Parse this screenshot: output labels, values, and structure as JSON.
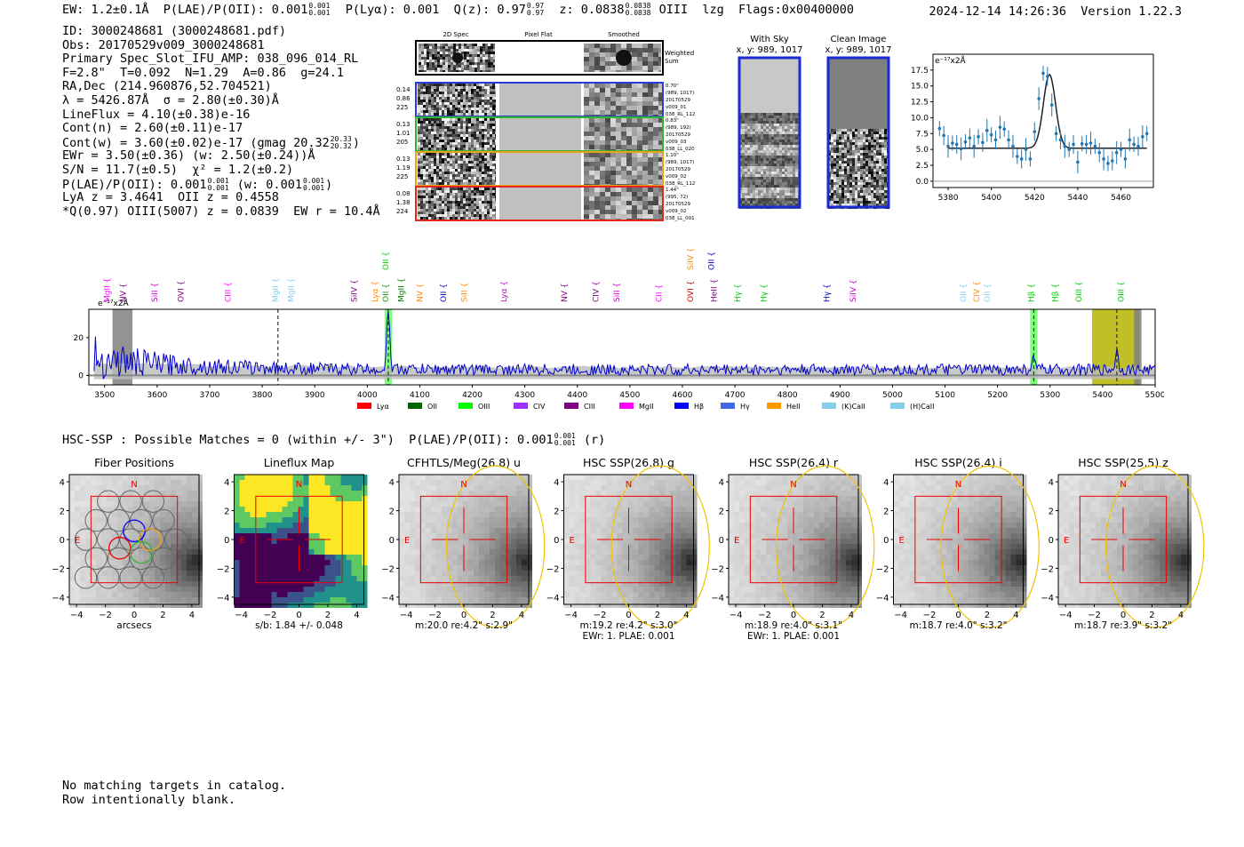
{
  "header": {
    "left_parts": [
      "EW: 1.2±0.1Å  P(LAE)/P(OII): 0.001",
      "0.001|0.001",
      "  P(Lyα): 0.001  Q(z): 0.97",
      "0.97|0.97",
      "  z: 0.0838",
      "0.0838|0.0838",
      " OIII  lzg  Flags:0x00400000"
    ],
    "right": "2024-12-14 14:26:36  Version 1.22.3"
  },
  "info": {
    "id": "ID: 3000248681 (3000248681.pdf)",
    "obs": "Obs: 20170529v009_3000248681",
    "primary": "Primary Spec_Slot_IFU_AMP: 038_096_014_RL",
    "fwhm": "F=2.8\"  T=0.092  N=1.29  A=0.86  g=24.1",
    "radec": "RA,Dec (214.960876,52.704521)",
    "lambda": "λ = 5426.87Å  σ = 2.80(±0.30)Å",
    "lineflux": "LineFlux = 4.10(±0.38)e-16",
    "cont_n": "Cont(n) = 2.60(±0.11)e-17",
    "cont_w": "Cont(w) = 3.60(±0.02)e-17 (gmag 20.32",
    "cont_w_frac": "20.33|20.32",
    "cont_w_end": ")",
    "ewr": "EWr = 3.50(±0.36) (w: 2.50(±0.24))Å",
    "sn": "S/N = 11.7(±0.5)  χ² = 1.2(±0.2)",
    "plae_a": "P(LAE)/P(OII): 0.001",
    "plae_frac1": "0.001|0.001",
    "plae_b": "(w: 0.001",
    "plae_frac2": "0.001|0.001",
    "plae_c": ")",
    "lya": "LyA z = 3.4641  OII z = 0.4558",
    "q": "*Q(0.97) OIII(5007) z = 0.0839  EW r = 10.4Å"
  },
  "cutouts_2d": {
    "col_titles": [
      "2D Spec",
      "Pixel Flat",
      "Smoothed"
    ],
    "weighted_label": "Weighted Sum",
    "rows": [
      {
        "left": [
          "0.14",
          "0.86",
          "225"
        ],
        "right": [
          "0.70\"",
          "(989, 1017)",
          "20170529",
          "v009_01",
          "038_RL_112"
        ],
        "color": "#2a3bd6"
      },
      {
        "left": [
          "0.13",
          "1.01",
          "205"
        ],
        "right": [
          "0.83\"",
          "(989, 192)",
          "20170529",
          "v009_03",
          "038_LL_020"
        ],
        "color": "#2eb82e"
      },
      {
        "left": [
          "0.13",
          "1.19",
          "225"
        ],
        "right": [
          "1.10\"",
          "(989, 1017)",
          "20170529",
          "v009_02",
          "038_RL_112"
        ],
        "color": "#e8a317"
      },
      {
        "left": [
          "0.08",
          "1.38",
          "224"
        ],
        "right": [
          "1.44\"",
          "(995, 72)",
          "20170529",
          "v009_02",
          "038_LL_001"
        ],
        "color": "#e3261e"
      }
    ]
  },
  "sky": {
    "with_sky_title": "With Sky",
    "with_sky_coords": "x, y: 989, 1017",
    "clean_title": "Clean Image",
    "clean_coords": "x, y: 989, 1017"
  },
  "zoom_chart": {
    "unit_label": "e⁻¹⁷x2Å",
    "y_ticks": [
      "17.5",
      "15.0",
      "12.5",
      "10.0",
      "7.5",
      "5.0",
      "2.5",
      "0.0"
    ],
    "x_ticks": [
      "5380",
      "5400",
      "5420",
      "5440",
      "5460"
    ]
  },
  "chart_data": [
    {
      "type": "scatter",
      "title": "",
      "xlabel": "",
      "ylabel": "e-17 x2Å",
      "xlim": [
        5373,
        5475
      ],
      "ylim": [
        -1,
        20
      ],
      "x": [
        5376,
        5378,
        5380,
        5382,
        5384,
        5386,
        5388,
        5390,
        5392,
        5394,
        5396,
        5398,
        5400,
        5402,
        5404,
        5406,
        5408,
        5410,
        5412,
        5414,
        5416,
        5418,
        5420,
        5422,
        5424,
        5426,
        5428,
        5430,
        5432,
        5434,
        5436,
        5438,
        5440,
        5442,
        5444,
        5446,
        5448,
        5450,
        5452,
        5454,
        5456,
        5458,
        5460,
        5462,
        5464,
        5466,
        5468,
        5470,
        5472
      ],
      "values": [
        8.3,
        7.2,
        5.5,
        6.0,
        5.8,
        5.1,
        6.2,
        6.8,
        5.5,
        7.0,
        6.1,
        8.0,
        7.3,
        6.5,
        8.5,
        8.2,
        6.5,
        5.5,
        3.9,
        3.5,
        5.0,
        3.5,
        7.8,
        13.0,
        17.0,
        16.5,
        12.0,
        7.5,
        6.5,
        5.5,
        5.0,
        5.8,
        3.0,
        5.9,
        5.8,
        6.0,
        5.5,
        4.5,
        3.5,
        2.8,
        3.2,
        4.5,
        5.0,
        3.5,
        6.5,
        5.8,
        5.5,
        7.0,
        7.5
      ],
      "model": {
        "continuum": 5.2,
        "peak_center": 5426.9,
        "peak_amp": 11.6,
        "sigma": 2.8
      }
    },
    {
      "type": "line",
      "title": "",
      "xlabel": "",
      "ylabel": "e-17 x2Å",
      "xlim": [
        3470,
        5500
      ],
      "ylim": [
        -5,
        35
      ],
      "y_ticks": [
        0,
        20
      ],
      "x_ticks": [
        3500,
        3600,
        3700,
        3800,
        3900,
        4000,
        4100,
        4200,
        4300,
        4400,
        4500,
        4600,
        4700,
        4800,
        4900,
        5000,
        5100,
        5200,
        5300,
        5400,
        5500
      ],
      "highlights": [
        {
          "x0": 3515,
          "x1": 3553,
          "color": "#808080"
        },
        {
          "x0": 4033,
          "x1": 4047,
          "color": "#66ff66"
        },
        {
          "x0": 5262,
          "x1": 5276,
          "color": "#66ff66"
        },
        {
          "x0": 5380,
          "x1": 5470,
          "color": "#b5b500"
        },
        {
          "x0": 5460,
          "x1": 5474,
          "color": "#808080"
        }
      ],
      "dashed_lines": [
        3830,
        4040,
        5269,
        5427
      ],
      "peaks": [
        {
          "x": 4040,
          "amp": 30
        },
        {
          "x": 5269,
          "amp": 6
        },
        {
          "x": 5427,
          "amp": 10
        }
      ],
      "line_labels": [
        {
          "x": 3510,
          "text": "MgII",
          "color": "#ff00ff",
          "row": 0
        },
        {
          "x": 3540,
          "text": "NV",
          "color": "#800080",
          "row": 0
        },
        {
          "x": 3600,
          "text": "SiII",
          "color": "#cc00cc",
          "row": 0
        },
        {
          "x": 3650,
          "text": "OVI",
          "color": "#800080",
          "row": 0
        },
        {
          "x": 3740,
          "text": "CIII",
          "color": "#ff00ff",
          "row": 0
        },
        {
          "x": 3830,
          "text": "MgII",
          "color": "#87ceeb",
          "row": 0
        },
        {
          "x": 3860,
          "text": "MgII",
          "color": "#87ceeb",
          "row": 0
        },
        {
          "x": 3980,
          "text": "SiIV",
          "color": "#800080",
          "row": 0
        },
        {
          "x": 4020,
          "text": "Lyα",
          "color": "#ff8c00",
          "row": 0
        },
        {
          "x": 4040,
          "text": "OII",
          "color": "#228b22",
          "row": 0
        },
        {
          "x": 4070,
          "text": "MgII",
          "color": "#008000",
          "row": 0
        },
        {
          "x": 4105,
          "text": "NV",
          "color": "#ff8c00",
          "row": 0
        },
        {
          "x": 4150,
          "text": "OII",
          "color": "#0000cc",
          "row": 0
        },
        {
          "x": 4190,
          "text": "SiII",
          "color": "#ff8c00",
          "row": 0
        },
        {
          "x": 4265,
          "text": "Lyα",
          "color": "#cc00cc",
          "row": 0
        },
        {
          "x": 4380,
          "text": "NV",
          "color": "#800080",
          "row": 0
        },
        {
          "x": 4440,
          "text": "CIV",
          "color": "#800080",
          "row": 0
        },
        {
          "x": 4480,
          "text": "SiII",
          "color": "#cc00cc",
          "row": 0
        },
        {
          "x": 4560,
          "text": "CII",
          "color": "#ff00ff",
          "row": 0
        },
        {
          "x": 4620,
          "text": "OVI",
          "color": "#cc0000",
          "row": 0
        },
        {
          "x": 4665,
          "text": "HeII",
          "color": "#800080",
          "row": 0
        },
        {
          "x": 4710,
          "text": "Hγ",
          "color": "#00cc00",
          "row": 0
        },
        {
          "x": 4760,
          "text": "Hγ",
          "color": "#00cc00",
          "row": 0
        },
        {
          "x": 4880,
          "text": "Hγ",
          "color": "#0000cc",
          "row": 0
        },
        {
          "x": 4930,
          "text": "SiIV",
          "color": "#cc00cc",
          "row": 0
        },
        {
          "x": 5140,
          "text": "OII",
          "color": "#87ceeb",
          "row": 0
        },
        {
          "x": 5165,
          "text": "CIV",
          "color": "#ff8c00",
          "row": 0
        },
        {
          "x": 5185,
          "text": "OII",
          "color": "#87ceeb",
          "row": 0
        },
        {
          "x": 5269,
          "text": "Hβ",
          "color": "#00cc00",
          "row": 0
        },
        {
          "x": 5315,
          "text": "Hβ",
          "color": "#00cc00",
          "row": 0
        },
        {
          "x": 5360,
          "text": "OIII",
          "color": "#00cc00",
          "row": 0
        },
        {
          "x": 5440,
          "text": "OIII",
          "color": "#00cc00",
          "row": 0
        },
        {
          "x": 4040,
          "text": "OII",
          "color": "#00cc00",
          "row": 1
        },
        {
          "x": 4620,
          "text": "SiIV",
          "color": "#ff8c00",
          "row": 1
        },
        {
          "x": 4660,
          "text": "OII",
          "color": "#0000cc",
          "row": 1
        }
      ],
      "legend": [
        {
          "label": "Lyα",
          "color": "#ff0000"
        },
        {
          "label": "OII",
          "color": "#006400"
        },
        {
          "label": "OIII",
          "color": "#00ff00"
        },
        {
          "label": "CIV",
          "color": "#9b30ff"
        },
        {
          "label": "CIII",
          "color": "#800080"
        },
        {
          "label": "MgII",
          "color": "#ff00ff"
        },
        {
          "label": "Hβ",
          "color": "#0000ff"
        },
        {
          "label": "Hγ",
          "color": "#4169e1"
        },
        {
          "label": "HeII",
          "color": "#ff9900"
        },
        {
          "label": "(K)CaII",
          "color": "#87ceeb"
        },
        {
          "label": "(H)CaII",
          "color": "#87ceeb"
        }
      ]
    }
  ],
  "full_spec_unit": "e⁻¹⁷x2Å",
  "hsc_line": {
    "text_a": "HSC-SSP : Possible Matches = 0 (within +/- 3\")  P(LAE)/P(OII): 0.001",
    "frac": "0.001|0.001",
    "text_b": " (r)"
  },
  "cutouts": [
    {
      "title": "Fiber Positions",
      "below": [
        "arcsecs"
      ],
      "type": "fiber"
    },
    {
      "title": "Lineflux Map",
      "below": [
        "s/b: 1.84 +/- 0.048"
      ],
      "type": "lineflux"
    },
    {
      "title": "CFHTLS/Meg(26.8) u",
      "below": [
        "m:20.0  re:4.2\"  s:2.9\""
      ],
      "type": "img"
    },
    {
      "title": "HSC SSP(26.8) g",
      "below": [
        "m:19.2  re:4.2\"  s:3.0\"",
        "EWr: 1. PLAE: 0.001"
      ],
      "type": "img"
    },
    {
      "title": "HSC SSP(26.4) r",
      "below": [
        "m:18.9  re:4.0\"  s:3.1\"",
        "EWr: 1. PLAE: 0.001"
      ],
      "type": "img"
    },
    {
      "title": "HSC SSP(26.4) i",
      "below": [
        "m:18.7  re:4.0\"  s:3.2\""
      ],
      "type": "img"
    },
    {
      "title": "HSC SSP(25.5) z",
      "below": [
        "m:18.7  re:3.9\"  s:3.2\""
      ],
      "type": "img"
    }
  ],
  "cutout_axes": {
    "ticks": [
      "4",
      "2",
      "0",
      "−2",
      "−4"
    ],
    "xticks": [
      "−4",
      "−2",
      "0",
      "2",
      "4"
    ],
    "n_label": "N",
    "e_label": "E"
  },
  "footer": {
    "line1": "No matching targets in catalog.",
    "line2": "Row intentionally blank."
  }
}
